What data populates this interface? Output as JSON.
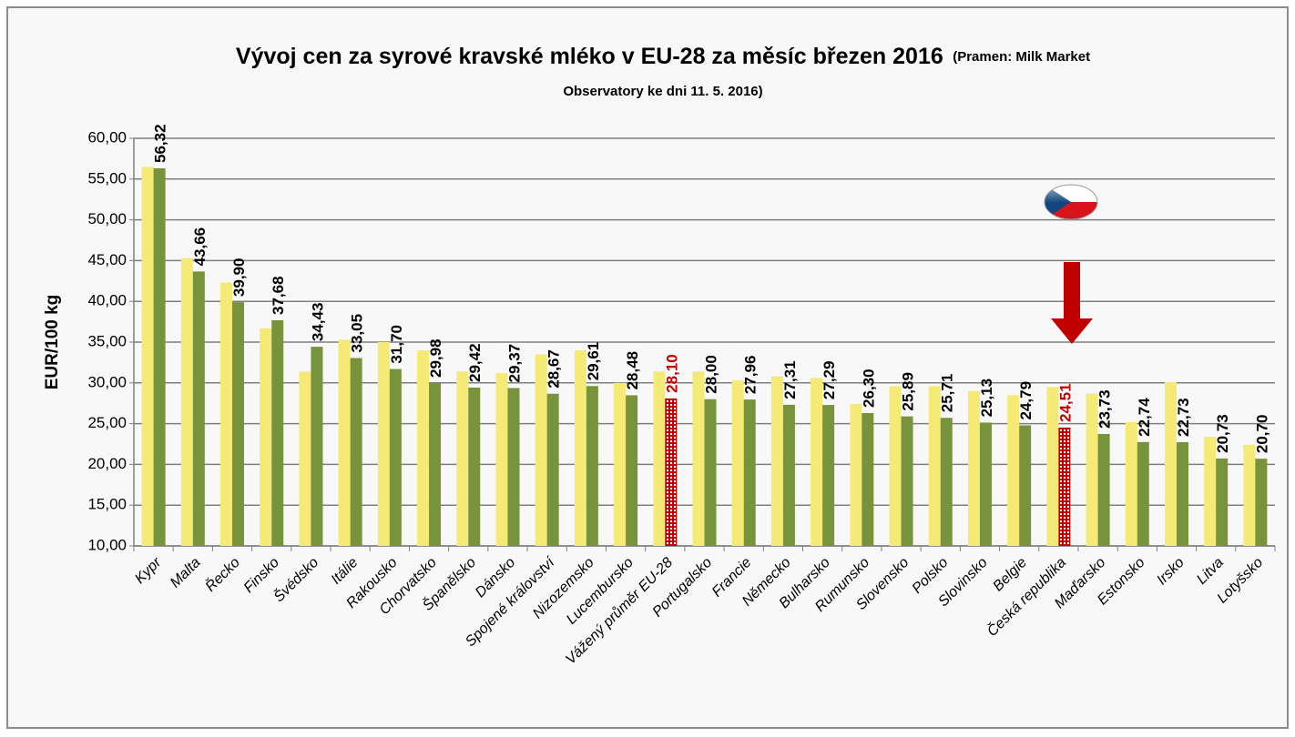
{
  "chart_data": {
    "type": "bar",
    "title": "Vývoj cen za syrové kravské mléko v EU-28 za měsíc březen 2016",
    "subtitle_lines": [
      "(Pramen: Milk Market",
      "Observatory ke dni 11. 5. 2016)"
    ],
    "y_label": "EUR/100 kg",
    "categories": [
      "Kypr",
      "Malta",
      "Řecko",
      "Finsko",
      "Švédsko",
      "Itálie",
      "Rakousko",
      "Chorvatsko",
      "Španělsko",
      "Dánsko",
      "Spojené království",
      "Nizozemsko",
      "Lucembursko",
      "Vážený průměr EU-28",
      "Portugalsko",
      "Francie",
      "Německo",
      "Bulharsko",
      "Rumunsko",
      "Slovensko",
      "Polsko",
      "Slovinsko",
      "Belgie",
      "Česká republika",
      "Maďarsko",
      "Estonsko",
      "Irsko",
      "Litva",
      "Lotyšsko"
    ],
    "series": [
      {
        "color": "#f5ea76",
        "values": [
          56.5,
          45.3,
          42.3,
          36.7,
          31.4,
          35.3,
          35.0,
          34.0,
          31.4,
          31.2,
          33.5,
          34.0,
          30.0,
          31.4,
          31.4,
          30.3,
          30.8,
          30.6,
          27.4,
          29.6,
          29.6,
          29.0,
          28.5,
          29.5,
          28.7,
          25.2,
          30.1,
          23.4,
          22.4
        ]
      },
      {
        "color": "#77933c",
        "point_colors": [
          "#77933c",
          "#77933c",
          "#77933c",
          "#77933c",
          "#77933c",
          "#77933c",
          "#77933c",
          "#77933c",
          "#77933c",
          "#77933c",
          "#77933c",
          "#77933c",
          "#77933c",
          "#c00000",
          "#77933c",
          "#77933c",
          "#77933c",
          "#77933c",
          "#77933c",
          "#77933c",
          "#77933c",
          "#77933c",
          "#77933c",
          "#c00000",
          "#77933c",
          "#77933c",
          "#77933c",
          "#77933c",
          "#77933c"
        ],
        "values": [
          56.32,
          43.66,
          39.9,
          37.68,
          34.43,
          33.05,
          31.7,
          29.98,
          29.42,
          29.37,
          28.67,
          29.61,
          28.48,
          28.1,
          28.0,
          27.96,
          27.31,
          27.29,
          26.3,
          25.89,
          25.71,
          25.13,
          24.79,
          24.51,
          23.73,
          22.74,
          22.73,
          20.73,
          20.7
        ],
        "value_labels": [
          "56,32",
          "43,66",
          "39,90",
          "37,68",
          "34,43",
          "33,05",
          "31,70",
          "29,98",
          "29,42",
          "29,37",
          "28,67",
          "29,61",
          "28,48",
          "28,10",
          "28,00",
          "27,96",
          "27,31",
          "27,29",
          "26,30",
          "25,89",
          "25,71",
          "25,13",
          "24,79",
          "24,51",
          "23,73",
          "22,74",
          "22,73",
          "20,73",
          "20,70"
        ],
        "value_label_colors": [
          "#000000",
          "#000000",
          "#000000",
          "#000000",
          "#000000",
          "#000000",
          "#000000",
          "#000000",
          "#000000",
          "#000000",
          "#000000",
          "#000000",
          "#000000",
          "#c00000",
          "#000000",
          "#000000",
          "#000000",
          "#000000",
          "#000000",
          "#000000",
          "#000000",
          "#000000",
          "#000000",
          "#c00000",
          "#000000",
          "#000000",
          "#000000",
          "#000000",
          "#000000"
        ]
      }
    ],
    "ylim": [
      10,
      60
    ],
    "yticks": [
      {
        "value": 10,
        "label": "10,00"
      },
      {
        "value": 15,
        "label": "15,00"
      },
      {
        "value": 20,
        "label": "20,00"
      },
      {
        "value": 25,
        "label": "25,00"
      },
      {
        "value": 30,
        "label": "30,00"
      },
      {
        "value": 35,
        "label": "35,00"
      },
      {
        "value": 40,
        "label": "40,00"
      },
      {
        "value": 45,
        "label": "45,00"
      },
      {
        "value": 50,
        "label": "50,00"
      },
      {
        "value": 55,
        "label": "55,00"
      },
      {
        "value": 60,
        "label": "60,00"
      }
    ],
    "grid": true
  }
}
